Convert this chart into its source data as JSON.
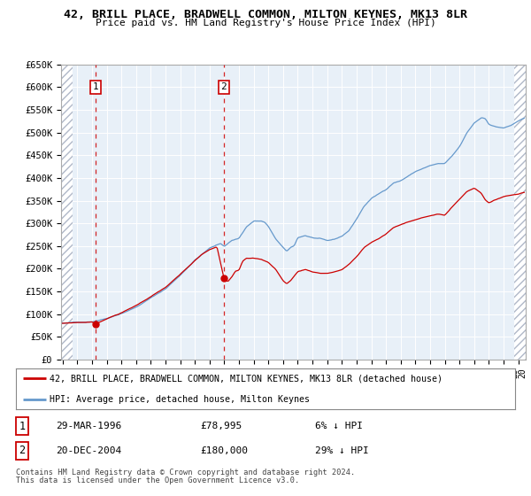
{
  "title": "42, BRILL PLACE, BRADWELL COMMON, MILTON KEYNES, MK13 8LR",
  "subtitle": "Price paid vs. HM Land Registry's House Price Index (HPI)",
  "ylim": [
    0,
    650000
  ],
  "yticks": [
    0,
    50000,
    100000,
    150000,
    200000,
    250000,
    300000,
    350000,
    400000,
    450000,
    500000,
    550000,
    600000,
    650000
  ],
  "ytick_labels": [
    "£0",
    "£50K",
    "£100K",
    "£150K",
    "£200K",
    "£250K",
    "£300K",
    "£350K",
    "£400K",
    "£450K",
    "£500K",
    "£550K",
    "£600K",
    "£650K"
  ],
  "xlim_start": 1993.9,
  "xlim_end": 2025.5,
  "transactions": [
    {
      "num": 1,
      "date": "29-MAR-1996",
      "price": 78995,
      "year": 1996.25,
      "pct": "6%",
      "dir": "↓"
    },
    {
      "num": 2,
      "date": "20-DEC-2004",
      "price": 180000,
      "year": 2004.97,
      "pct": "29%",
      "dir": "↓"
    }
  ],
  "legend_line1": "42, BRILL PLACE, BRADWELL COMMON, MILTON KEYNES, MK13 8LR (detached house)",
  "legend_line2": "HPI: Average price, detached house, Milton Keynes",
  "footer1": "Contains HM Land Registry data © Crown copyright and database right 2024.",
  "footer2": "This data is licensed under the Open Government Licence v3.0.",
  "price_line_color": "#cc0000",
  "hpi_line_color": "#6699cc",
  "plot_bg_color": "#e8f0f8",
  "hatch_color": "#b0b8c8"
}
